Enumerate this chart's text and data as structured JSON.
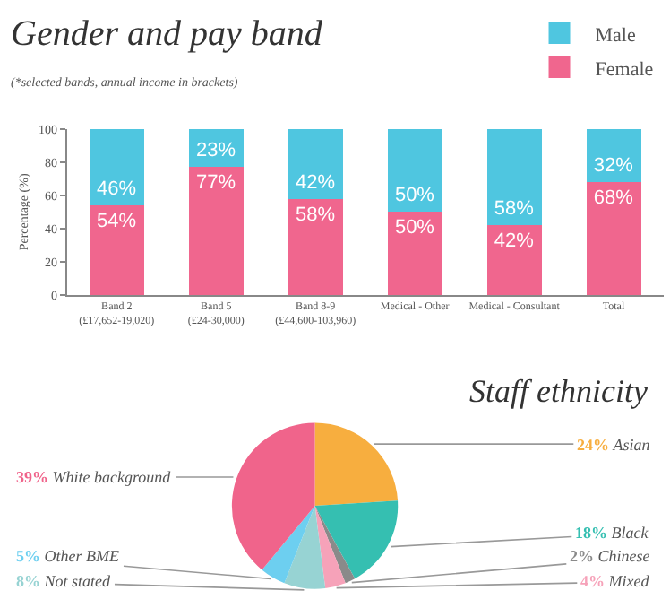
{
  "chart_data": [
    {
      "type": "bar",
      "stacked": true,
      "title": "Gender and pay band",
      "subtitle": "(*selected bands, annual income in brackets)",
      "ylabel": "Percentage (%)",
      "categories": [
        "Band 2\n(£17,652-19,020)",
        "Band 5\n(£24-30,000)",
        "Band 8-9\n(£44,600-103,960)",
        "Medical - Other",
        "Medical - Consultant",
        "Total"
      ],
      "series": [
        {
          "name": "Female",
          "color": "#f0668e",
          "values": [
            54,
            77,
            58,
            50,
            42,
            68
          ],
          "value_labels": [
            "54%",
            "77%",
            "58%",
            "50%",
            "42%",
            "68%"
          ]
        },
        {
          "name": "Male",
          "color": "#4fc6e0",
          "values": [
            46,
            23,
            42,
            50,
            58,
            32
          ],
          "value_labels": [
            "46%",
            "23%",
            "42%",
            "50%",
            "58%",
            "32%"
          ]
        }
      ],
      "ylim": [
        0,
        100
      ],
      "yticks": [
        0,
        20,
        40,
        60,
        80,
        100
      ],
      "legend": "top right"
    },
    {
      "type": "pie",
      "title": "Staff ethnicity",
      "categories": [
        "Asian",
        "Black",
        "Chinese",
        "Mixed",
        "Not stated",
        "Other BME",
        "White background"
      ],
      "values": [
        24,
        18,
        2,
        4,
        8,
        5,
        39
      ],
      "value_labels": [
        "24%",
        "18%",
        "2%",
        "4%",
        "8%",
        "5%",
        "39%"
      ],
      "colors": [
        "#f7ae3f",
        "#35bfb1",
        "#8a8a8a",
        "#f6a2b9",
        "#97d3d3",
        "#6dcff0",
        "#f0648b"
      ]
    }
  ]
}
